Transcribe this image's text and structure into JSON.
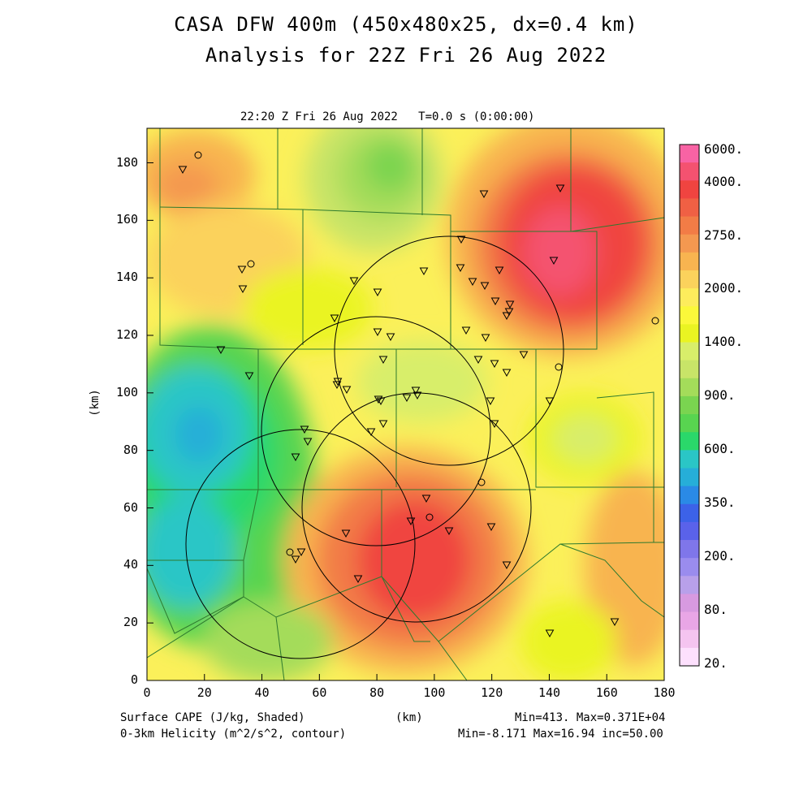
{
  "title_line1": "CASA DFW 400m (450x480x25, dx=0.4 km)",
  "title_line2": "Analysis for 22Z Fri 26 Aug 2022",
  "subtitle": "22:20 Z Fri 26 Aug 2022   T=0.0 s (0:00:00)",
  "x_axis": {
    "label": "(km)",
    "ticks": [
      "0",
      "20",
      "40",
      "60",
      "80",
      "100",
      "120",
      "140",
      "160",
      "180"
    ]
  },
  "y_axis": {
    "label": "(km)",
    "ticks": [
      "0",
      "20",
      "40",
      "60",
      "80",
      "100",
      "120",
      "140",
      "160",
      "180"
    ]
  },
  "footer": {
    "left1": "Surface CAPE (J/kg, Shaded)",
    "left2": "0-3km Helicity (m^2/s^2, contour)",
    "right1": "Min=413. Max=0.371E+04",
    "right2": "Min=-8.171 Max=16.94 inc=50.00"
  },
  "colorbar": {
    "labels": [
      "6000.",
      "4000.",
      "2750.",
      "2000.",
      "1400.",
      "900.",
      "600.",
      "350.",
      "200.",
      "80.",
      "20."
    ],
    "colors": [
      "#fde0fd",
      "#f5c4f0",
      "#e9a6e6",
      "#d79ae0",
      "#b8a0ea",
      "#9a8cee",
      "#7f76ea",
      "#5a62ea",
      "#3c62e8",
      "#2a8ae6",
      "#26aed8",
      "#2ac6c6",
      "#2ad86a",
      "#58d450",
      "#7ad450",
      "#a4dc5a",
      "#c8e468",
      "#d8ee6a",
      "#eaf422",
      "#fbf83a",
      "#fdec5c",
      "#fbd25c",
      "#f8b450",
      "#f49850",
      "#f27c46",
      "#f06044",
      "#f04440",
      "#f45270",
      "#f863a4"
    ]
  },
  "map_layers": {
    "shaded_field": "Surface CAPE",
    "contour_field": "0-3km Helicity",
    "radar_rings": 4,
    "station_symbols": "inverted-triangle"
  }
}
